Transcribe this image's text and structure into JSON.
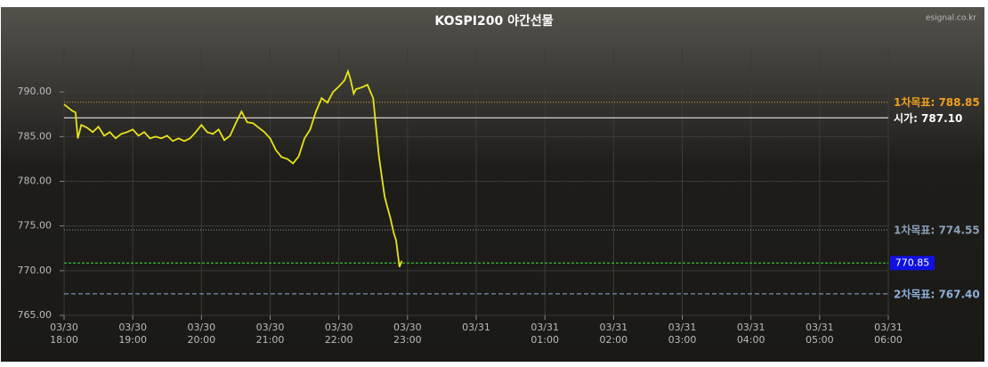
{
  "chart_data": {
    "type": "line",
    "title": "KOSPI200 야간선물",
    "source": "esignal.co.kr",
    "series": [
      {
        "name": "KOSPI200 야간선물",
        "color": "#e8e21a",
        "x": [
          "03/30 18:00",
          "03/30 18:03",
          "03/30 18:07",
          "03/30 18:10",
          "03/30 18:12",
          "03/30 18:15",
          "03/30 18:20",
          "03/30 18:25",
          "03/30 18:30",
          "03/30 18:35",
          "03/30 18:40",
          "03/30 18:45",
          "03/30 18:50",
          "03/30 18:55",
          "03/30 19:00",
          "03/30 19:05",
          "03/30 19:10",
          "03/30 19:15",
          "03/30 19:20",
          "03/30 19:25",
          "03/30 19:30",
          "03/30 19:35",
          "03/30 19:40",
          "03/30 19:45",
          "03/30 19:50",
          "03/30 19:55",
          "03/30 20:00",
          "03/30 20:05",
          "03/30 20:10",
          "03/30 20:15",
          "03/30 20:20",
          "03/30 20:25",
          "03/30 20:30",
          "03/30 20:35",
          "03/30 20:40",
          "03/30 20:45",
          "03/30 20:50",
          "03/30 20:55",
          "03/30 21:00",
          "03/30 21:05",
          "03/30 21:10",
          "03/30 21:15",
          "03/30 21:20",
          "03/30 21:25",
          "03/30 21:30",
          "03/30 21:35",
          "03/30 21:40",
          "03/30 21:45",
          "03/30 21:50",
          "03/30 21:55",
          "03/30 22:00",
          "03/30 22:05",
          "03/30 22:08",
          "03/30 22:10",
          "03/30 22:13",
          "03/30 22:15",
          "03/30 22:20",
          "03/30 22:25",
          "03/30 22:30",
          "03/30 22:35",
          "03/30 22:40",
          "03/30 22:42",
          "03/30 22:45",
          "03/30 22:48",
          "03/30 22:50",
          "03/30 22:53",
          "03/30 22:55"
        ],
        "values": [
          788.6,
          788.3,
          787.9,
          787.7,
          784.8,
          786.3,
          786.0,
          785.5,
          786.1,
          785.1,
          785.5,
          784.8,
          785.3,
          785.5,
          785.8,
          785.1,
          785.5,
          784.8,
          785.0,
          784.8,
          785.1,
          784.5,
          784.8,
          784.5,
          784.8,
          785.5,
          786.3,
          785.5,
          785.3,
          785.8,
          784.6,
          785.1,
          786.5,
          787.8,
          786.6,
          786.5,
          786.0,
          785.5,
          784.8,
          783.5,
          782.7,
          782.5,
          782.0,
          782.8,
          784.8,
          785.8,
          787.8,
          789.3,
          788.8,
          790.0,
          790.6,
          791.3,
          792.3,
          791.5,
          789.8,
          790.3,
          790.5,
          790.8,
          789.3,
          782.8,
          778.3,
          777.3,
          775.9,
          774.2,
          773.4,
          770.4,
          771.1
        ]
      }
    ],
    "xlim": [
      "03/30 18:00",
      "03/31 06:00"
    ],
    "xticks": [
      "03/30 18:00",
      "03/30 19:00",
      "03/30 20:00",
      "03/30 21:00",
      "03/30 22:00",
      "03/30 23:00",
      "03/31",
      "03/31 01:00",
      "03/31 02:00",
      "03/31 03:00",
      "03/31 04:00",
      "03/31 05:00",
      "03/31 06:00"
    ],
    "ylim": [
      765,
      795
    ],
    "yticks": [
      {
        "value": 765,
        "label": "765.00"
      },
      {
        "value": 770,
        "label": "770.00"
      },
      {
        "value": 775,
        "label": "775.00"
      },
      {
        "value": 780,
        "label": "780.00"
      },
      {
        "value": 785,
        "label": "785.00"
      },
      {
        "value": 790,
        "label": "790.00"
      }
    ],
    "grid": true,
    "reference_lines": [
      {
        "value": 788.85,
        "label": "1차목표: 788.85",
        "color": "#f0a020",
        "dash": "1,2"
      },
      {
        "value": 787.1,
        "label": "시가: 787.10",
        "color": "#ffffff",
        "dash": "none"
      },
      {
        "value": 774.55,
        "label": "1차목표: 774.55",
        "color": "#8aa0b8",
        "dash": "1,2"
      },
      {
        "value": 770.85,
        "label": "770.85",
        "color": "#40e040",
        "dash": "3,2",
        "box": "#1010e0"
      },
      {
        "value": 767.4,
        "label": "2차목표: 767.40",
        "color": "#8ab0d8",
        "dash": "5,3"
      }
    ]
  }
}
